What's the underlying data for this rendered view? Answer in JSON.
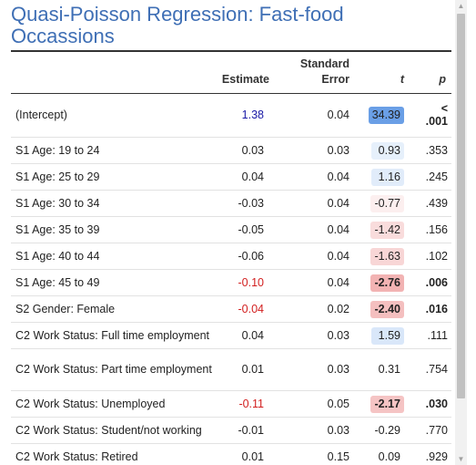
{
  "title": "Quasi-Poisson Regression: Fast-food Occassions",
  "columns": {
    "term": "",
    "estimate": "Estimate",
    "se_line1": "Standard",
    "se_line2": "Error",
    "t": "t",
    "p": "p"
  },
  "rows": [
    {
      "term": "(Intercept)",
      "estimate": "1.38",
      "se": "0.04",
      "t": "34.39",
      "p": "< .001",
      "est_class": "pos-sig",
      "t_color": "#6a9fe6",
      "t_bold": false,
      "p_bold": true
    },
    {
      "term": "S1 Age: 19 to 24",
      "estimate": "0.03",
      "se": "0.03",
      "t": "0.93",
      "p": ".353",
      "est_class": "",
      "t_color": "#e6f0fb",
      "t_bold": false,
      "p_bold": false
    },
    {
      "term": "S1 Age: 25 to 29",
      "estimate": "0.04",
      "se": "0.04",
      "t": "1.16",
      "p": ".245",
      "est_class": "",
      "t_color": "#e1ecfa",
      "t_bold": false,
      "p_bold": false
    },
    {
      "term": "S1 Age: 30 to 34",
      "estimate": "-0.03",
      "se": "0.04",
      "t": "-0.77",
      "p": ".439",
      "est_class": "",
      "t_color": "#fcefef",
      "t_bold": false,
      "p_bold": false
    },
    {
      "term": "S1 Age: 35 to 39",
      "estimate": "-0.05",
      "se": "0.04",
      "t": "-1.42",
      "p": ".156",
      "est_class": "",
      "t_color": "#f9dcdc",
      "t_bold": false,
      "p_bold": false
    },
    {
      "term": "S1 Age: 40 to 44",
      "estimate": "-0.06",
      "se": "0.04",
      "t": "-1.63",
      "p": ".102",
      "est_class": "",
      "t_color": "#f8d6d6",
      "t_bold": false,
      "p_bold": false
    },
    {
      "term": "S1 Age: 45 to 49",
      "estimate": "-0.10",
      "se": "0.04",
      "t": "-2.76",
      "p": ".006",
      "est_class": "neg-sig",
      "t_color": "#f2b3b3",
      "t_bold": true,
      "p_bold": true
    },
    {
      "term": "S2 Gender: Female",
      "estimate": "-0.04",
      "se": "0.02",
      "t": "-2.40",
      "p": ".016",
      "est_class": "neg-sig",
      "t_color": "#f4bfbf",
      "t_bold": true,
      "p_bold": true
    },
    {
      "term": "C2 Work Status: Full time employment",
      "estimate": "0.04",
      "se": "0.03",
      "t": "1.59",
      "p": ".111",
      "est_class": "",
      "t_color": "#d9e7f9",
      "t_bold": false,
      "p_bold": false
    },
    {
      "term": "C2 Work Status: Part time employment",
      "estimate": "0.01",
      "se": "0.03",
      "t": "0.31",
      "p": ".754",
      "est_class": "",
      "t_color": "",
      "t_bold": false,
      "p_bold": false,
      "tall": true
    },
    {
      "term": "C2 Work Status: Unemployed",
      "estimate": "-0.11",
      "se": "0.05",
      "t": "-2.17",
      "p": ".030",
      "est_class": "neg-sig",
      "t_color": "#f5c4c4",
      "t_bold": true,
      "p_bold": true
    },
    {
      "term": "C2 Work Status: Student/not working",
      "estimate": "-0.01",
      "se": "0.03",
      "t": "-0.29",
      "p": ".770",
      "est_class": "",
      "t_color": "",
      "t_bold": false,
      "p_bold": false
    },
    {
      "term": "C2 Work Status: Retired",
      "estimate": "0.01",
      "se": "0.15",
      "t": "0.09",
      "p": ".929",
      "est_class": "",
      "t_color": "",
      "t_bold": false,
      "p_bold": false
    }
  ],
  "scrollbar": {
    "up_icon": "arrow-up-icon",
    "down_icon": "arrow-down-icon"
  }
}
